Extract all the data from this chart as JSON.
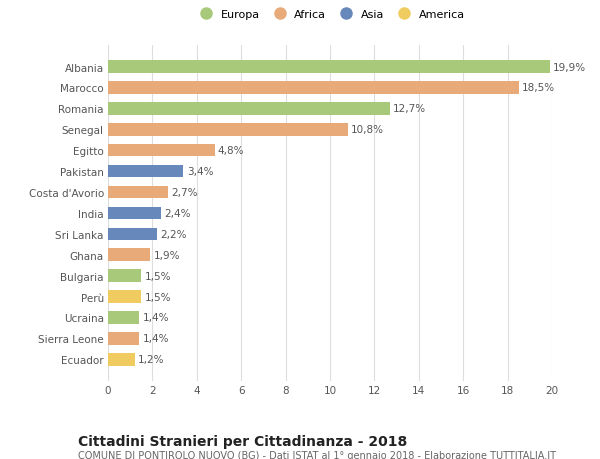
{
  "categories": [
    "Albania",
    "Marocco",
    "Romania",
    "Senegal",
    "Egitto",
    "Pakistan",
    "Costa d'Avorio",
    "India",
    "Sri Lanka",
    "Ghana",
    "Bulgaria",
    "Perù",
    "Ucraina",
    "Sierra Leone",
    "Ecuador"
  ],
  "values": [
    19.9,
    18.5,
    12.7,
    10.8,
    4.8,
    3.4,
    2.7,
    2.4,
    2.2,
    1.9,
    1.5,
    1.5,
    1.4,
    1.4,
    1.2
  ],
  "labels": [
    "19,9%",
    "18,5%",
    "12,7%",
    "10,8%",
    "4,8%",
    "3,4%",
    "2,7%",
    "2,4%",
    "2,2%",
    "1,9%",
    "1,5%",
    "1,5%",
    "1,4%",
    "1,4%",
    "1,2%"
  ],
  "continents": [
    "Europa",
    "Africa",
    "Europa",
    "Africa",
    "Africa",
    "Asia",
    "Africa",
    "Asia",
    "Asia",
    "Africa",
    "Europa",
    "America",
    "Europa",
    "Africa",
    "America"
  ],
  "continent_colors": {
    "Europa": "#a8c87a",
    "Africa": "#e8aa78",
    "Asia": "#6688bb",
    "America": "#f0cc60"
  },
  "legend_order": [
    "Europa",
    "Africa",
    "Asia",
    "America"
  ],
  "xlim": [
    0,
    20
  ],
  "xticks": [
    0,
    2,
    4,
    6,
    8,
    10,
    12,
    14,
    16,
    18,
    20
  ],
  "title": "Cittadini Stranieri per Cittadinanza - 2018",
  "subtitle": "COMUNE DI PONTIROLO NUOVO (BG) - Dati ISTAT al 1° gennaio 2018 - Elaborazione TUTTITALIA.IT",
  "background_color": "#ffffff",
  "grid_color": "#dddddd",
  "bar_height": 0.6,
  "label_fontsize": 7.5,
  "tick_fontsize": 7.5,
  "title_fontsize": 10,
  "subtitle_fontsize": 7.0,
  "legend_fontsize": 8.0
}
